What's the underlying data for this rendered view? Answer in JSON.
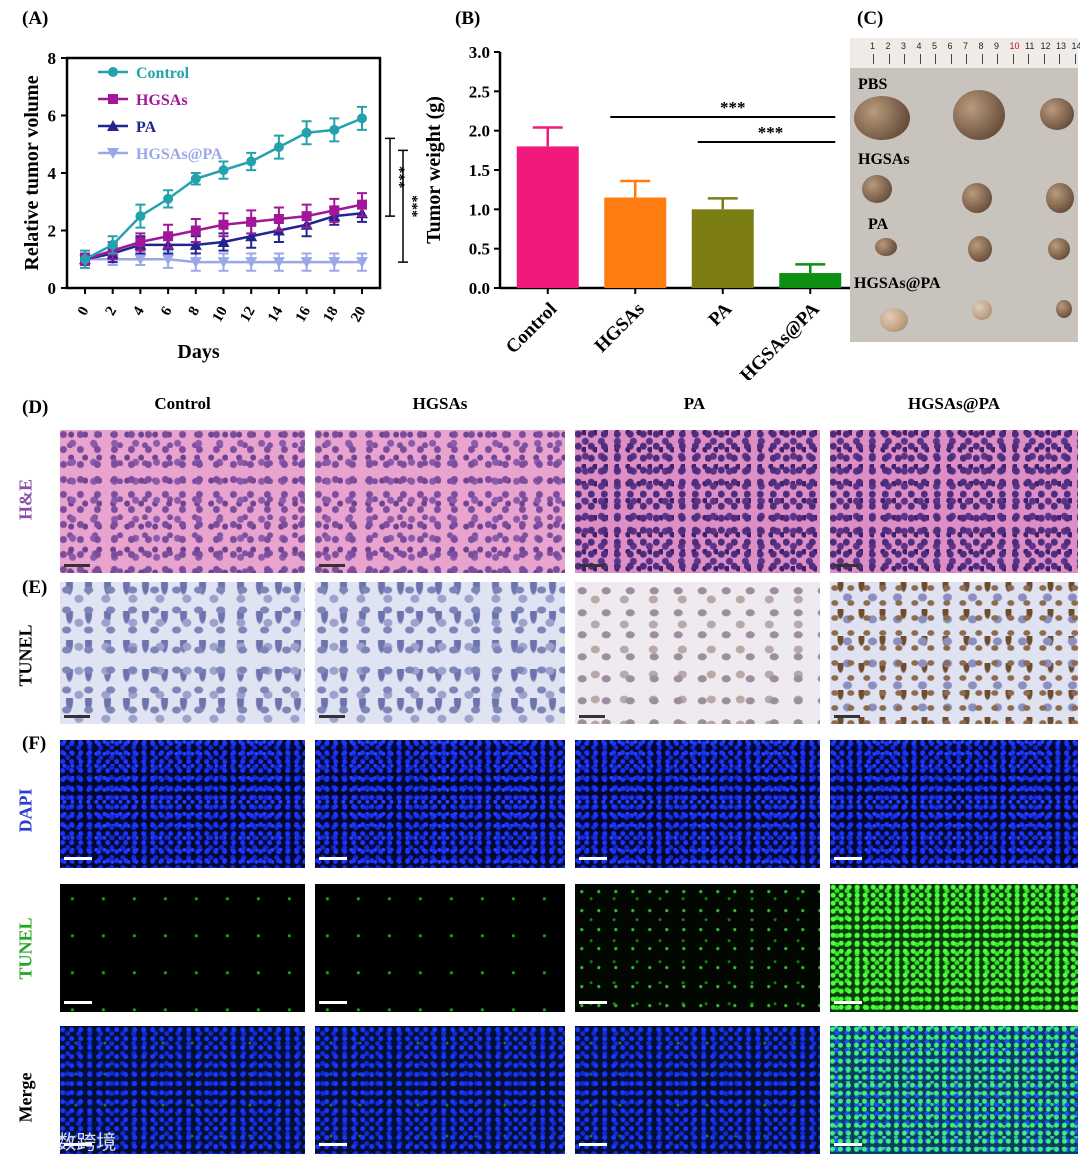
{
  "panels": {
    "a_label": "(A)",
    "b_label": "(B)",
    "c_label": "(C)",
    "d_label": "(D)",
    "e_label": "(E)",
    "f_label": "(F)"
  },
  "chart_data": [
    {
      "type": "line",
      "xlabel": "Days",
      "ylabel": "Relative tumor volume",
      "x": [
        0,
        2,
        4,
        6,
        8,
        10,
        12,
        14,
        16,
        18,
        20
      ],
      "xticks": [
        "0",
        "2",
        "4",
        "6",
        "8",
        "10",
        "12",
        "14",
        "16",
        "18",
        "20"
      ],
      "yticks": [
        "0",
        "2",
        "4",
        "6",
        "8"
      ],
      "ylim": [
        0,
        8
      ],
      "legend_position": "top-left",
      "series": [
        {
          "name": "Control",
          "color": "#23a2ad",
          "marker": "circle",
          "values": [
            1.0,
            1.5,
            2.5,
            3.1,
            3.8,
            4.1,
            4.4,
            4.9,
            5.4,
            5.5,
            5.9
          ],
          "errors": [
            0.3,
            0.3,
            0.4,
            0.3,
            0.2,
            0.3,
            0.3,
            0.4,
            0.4,
            0.4,
            0.4
          ]
        },
        {
          "name": "HGSAs",
          "color": "#a2169a",
          "marker": "square",
          "values": [
            1.0,
            1.3,
            1.6,
            1.8,
            2.0,
            2.2,
            2.3,
            2.4,
            2.5,
            2.7,
            2.9
          ],
          "errors": [
            0.2,
            0.3,
            0.3,
            0.4,
            0.4,
            0.4,
            0.4,
            0.4,
            0.4,
            0.4,
            0.4
          ]
        },
        {
          "name": "PA",
          "color": "#202590",
          "marker": "triangle",
          "values": [
            1.0,
            1.2,
            1.5,
            1.5,
            1.5,
            1.6,
            1.8,
            2.0,
            2.2,
            2.5,
            2.6
          ],
          "errors": [
            0.2,
            0.3,
            0.3,
            0.3,
            0.3,
            0.3,
            0.4,
            0.4,
            0.4,
            0.3,
            0.3
          ]
        },
        {
          "name": "HGSAs@PA",
          "color": "#9aa8e8",
          "marker": "triangle-down",
          "values": [
            1.0,
            1.0,
            1.0,
            1.0,
            0.9,
            0.9,
            0.9,
            0.9,
            0.9,
            0.9,
            0.9
          ],
          "errors": [
            0.2,
            0.2,
            0.2,
            0.3,
            0.3,
            0.3,
            0.3,
            0.3,
            0.3,
            0.3,
            0.3
          ]
        }
      ],
      "annotations": [
        "***",
        "***"
      ]
    },
    {
      "type": "bar",
      "ylabel": "Tumor weight (g)",
      "categories": [
        "Control",
        "HGSAs",
        "PA",
        "HGSAs@PA"
      ],
      "values": [
        1.8,
        1.15,
        1.0,
        0.19
      ],
      "errors": [
        0.24,
        0.21,
        0.14,
        0.11
      ],
      "colors": [
        "#f01a7d",
        "#ff7c10",
        "#7b7d13",
        "#0c8f13"
      ],
      "yticks": [
        "0.0",
        "0.5",
        "1.0",
        "1.5",
        "2.0",
        "2.5",
        "3.0"
      ],
      "ylim": [
        0,
        3.0
      ],
      "annotations": [
        "***",
        "***"
      ]
    }
  ],
  "photo": {
    "ruler_ticks": [
      "1",
      "2",
      "3",
      "4",
      "5",
      "6",
      "7",
      "8",
      "9",
      "10",
      "11",
      "12",
      "13",
      "14"
    ],
    "groups": [
      "PBS",
      "HGSAs",
      "PA",
      "HGSAs@PA"
    ]
  },
  "histology": {
    "columns": [
      "Control",
      "HGSAs",
      "PA",
      "HGSAs@PA"
    ],
    "row_he": "H&E",
    "row_tunel_ihc": "TUNEL",
    "row_dapi": "DAPI",
    "row_tunel_if": "TUNEL",
    "row_merge": "Merge",
    "colors": {
      "he": "#8b4ea6",
      "dapi": "#2a3fc9",
      "tunel_if": "#22a522",
      "dark": "#000000"
    }
  },
  "watermark": "大数跨境"
}
